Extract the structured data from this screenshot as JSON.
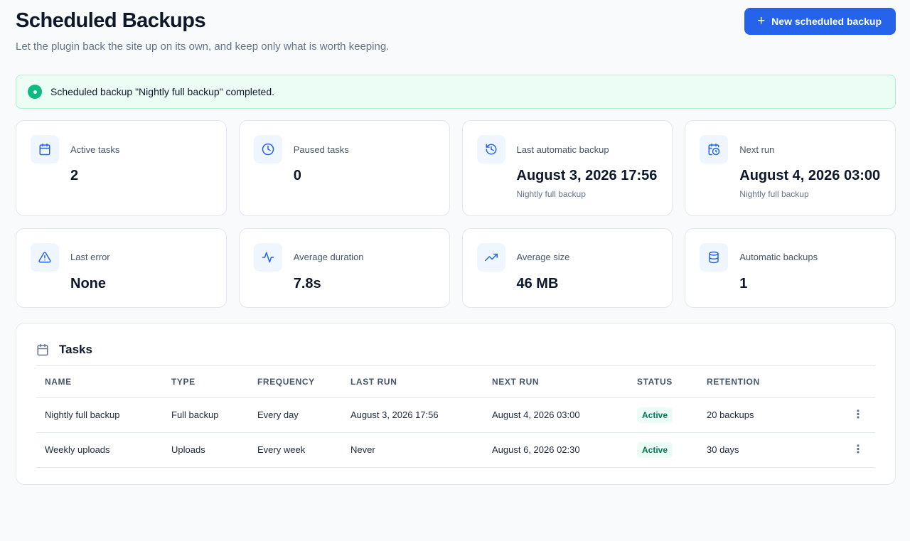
{
  "header": {
    "title": "Scheduled Backups",
    "subtitle": "Let the plugin back the site up on its own, and keep only what is worth keeping.",
    "new_button_label": "New scheduled backup",
    "new_button_icon": "plus-icon"
  },
  "notice": {
    "message": "Scheduled backup \"Nightly full backup\" completed.",
    "icon": "success-dot-icon",
    "color": "#10b981"
  },
  "stats": [
    {
      "label": "Active tasks",
      "value": "2",
      "icon": "calendar-icon"
    },
    {
      "label": "Paused tasks",
      "value": "0",
      "icon": "clock-icon"
    },
    {
      "label": "Last automatic backup",
      "value": "August 3, 2026 17:56",
      "sub": "Nightly full backup",
      "icon": "history-icon"
    },
    {
      "label": "Next run",
      "value": "August 4, 2026 03:00",
      "sub": "Nightly full backup",
      "icon": "calendar-clock-icon"
    },
    {
      "label": "Last error",
      "value": "None",
      "icon": "warning-icon"
    },
    {
      "label": "Average duration",
      "value": "7.8s",
      "icon": "activity-icon"
    },
    {
      "label": "Average size",
      "value": "46 MB",
      "icon": "trending-up-icon"
    },
    {
      "label": "Automatic backups",
      "value": "1",
      "icon": "database-icon"
    }
  ],
  "tasks": {
    "title": "Tasks",
    "columns": [
      "NAME",
      "TYPE",
      "FREQUENCY",
      "LAST RUN",
      "NEXT RUN",
      "STATUS",
      "RETENTION"
    ],
    "rows": [
      {
        "name": "Nightly full backup",
        "type": "Full backup",
        "frequency": "Every day",
        "last_run": "August 3, 2026 17:56",
        "next_run": "August 4, 2026 03:00",
        "status": "Active",
        "retention": "20 backups"
      },
      {
        "name": "Weekly uploads",
        "type": "Uploads",
        "frequency": "Every week",
        "last_run": "Never",
        "next_run": "August 6, 2026 02:30",
        "status": "Active",
        "retention": "30 days"
      }
    ]
  },
  "colors": {
    "accent": "#2563eb",
    "success": "#10b981",
    "background": "#f8fafc"
  }
}
